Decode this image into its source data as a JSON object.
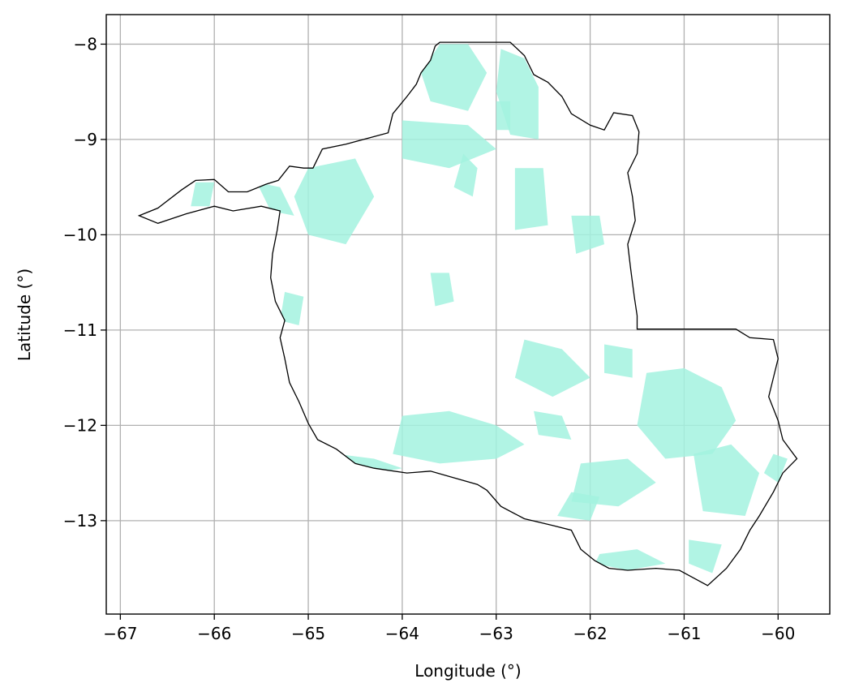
{
  "chart_data": {
    "type": "map",
    "title": "",
    "xlabel": "Longitude (°)",
    "ylabel": "Latitude (°)",
    "xlim": [
      -67.15,
      -59.45
    ],
    "ylim": [
      -13.98,
      -7.69
    ],
    "grid": true,
    "xticks": [
      -67,
      -66,
      -65,
      -64,
      -63,
      -62,
      -61,
      -60
    ],
    "yticks": [
      -8,
      -9,
      -10,
      -11,
      -12,
      -13
    ],
    "xtick_labels": [
      "−67",
      "−66",
      "−65",
      "−64",
      "−63",
      "−62",
      "−61",
      "−60"
    ],
    "ytick_labels": [
      "−8",
      "−9",
      "−10",
      "−11",
      "−12",
      "−13"
    ],
    "fill_color": "#a3f2df",
    "boundary_color": "#000000",
    "grid_color": "#b0b0b0",
    "boundary": [
      [
        -66.8,
        -9.8
      ],
      [
        -66.6,
        -9.72
      ],
      [
        -66.35,
        -9.53
      ],
      [
        -66.2,
        -9.43
      ],
      [
        -66.0,
        -9.42
      ],
      [
        -65.85,
        -9.55
      ],
      [
        -65.65,
        -9.55
      ],
      [
        -65.45,
        -9.47
      ],
      [
        -65.32,
        -9.43
      ],
      [
        -65.2,
        -9.28
      ],
      [
        -65.05,
        -9.3
      ],
      [
        -64.95,
        -9.3
      ],
      [
        -64.85,
        -9.1
      ],
      [
        -64.6,
        -9.05
      ],
      [
        -64.3,
        -8.97
      ],
      [
        -64.15,
        -8.93
      ],
      [
        -64.1,
        -8.73
      ],
      [
        -63.95,
        -8.55
      ],
      [
        -63.85,
        -8.42
      ],
      [
        -63.8,
        -8.3
      ],
      [
        -63.7,
        -8.17
      ],
      [
        -63.65,
        -8.02
      ],
      [
        -63.6,
        -7.98
      ],
      [
        -63.3,
        -7.98
      ],
      [
        -63.0,
        -7.98
      ],
      [
        -62.85,
        -7.98
      ],
      [
        -62.7,
        -8.12
      ],
      [
        -62.6,
        -8.32
      ],
      [
        -62.45,
        -8.4
      ],
      [
        -62.3,
        -8.55
      ],
      [
        -62.2,
        -8.73
      ],
      [
        -62.0,
        -8.85
      ],
      [
        -61.85,
        -8.9
      ],
      [
        -61.75,
        -8.72
      ],
      [
        -61.55,
        -8.75
      ],
      [
        -61.48,
        -8.92
      ],
      [
        -61.5,
        -9.15
      ],
      [
        -61.6,
        -9.35
      ],
      [
        -61.55,
        -9.6
      ],
      [
        -61.52,
        -9.85
      ],
      [
        -61.6,
        -10.1
      ],
      [
        -61.57,
        -10.35
      ],
      [
        -61.53,
        -10.65
      ],
      [
        -61.5,
        -10.85
      ],
      [
        -61.5,
        -10.99
      ],
      [
        -61.2,
        -10.99
      ],
      [
        -60.8,
        -10.99
      ],
      [
        -60.45,
        -10.99
      ],
      [
        -60.3,
        -11.08
      ],
      [
        -60.05,
        -11.1
      ],
      [
        -60.0,
        -11.3
      ],
      [
        -60.05,
        -11.5
      ],
      [
        -60.1,
        -11.7
      ],
      [
        -60.0,
        -11.95
      ],
      [
        -59.95,
        -12.15
      ],
      [
        -59.8,
        -12.35
      ],
      [
        -59.95,
        -12.5
      ],
      [
        -60.05,
        -12.7
      ],
      [
        -60.2,
        -12.95
      ],
      [
        -60.3,
        -13.1
      ],
      [
        -60.4,
        -13.3
      ],
      [
        -60.55,
        -13.5
      ],
      [
        -60.75,
        -13.68
      ],
      [
        -60.9,
        -13.6
      ],
      [
        -61.05,
        -13.52
      ],
      [
        -61.3,
        -13.5
      ],
      [
        -61.6,
        -13.52
      ],
      [
        -61.8,
        -13.5
      ],
      [
        -61.95,
        -13.42
      ],
      [
        -62.1,
        -13.3
      ],
      [
        -62.2,
        -13.1
      ],
      [
        -62.4,
        -13.05
      ],
      [
        -62.7,
        -12.98
      ],
      [
        -62.95,
        -12.85
      ],
      [
        -63.1,
        -12.68
      ],
      [
        -63.2,
        -12.62
      ],
      [
        -63.45,
        -12.55
      ],
      [
        -63.7,
        -12.48
      ],
      [
        -63.95,
        -12.5
      ],
      [
        -64.3,
        -12.45
      ],
      [
        -64.5,
        -12.4
      ],
      [
        -64.7,
        -12.25
      ],
      [
        -64.9,
        -12.15
      ],
      [
        -65.0,
        -11.98
      ],
      [
        -65.1,
        -11.75
      ],
      [
        -65.2,
        -11.55
      ],
      [
        -65.25,
        -11.3
      ],
      [
        -65.3,
        -11.08
      ],
      [
        -65.25,
        -10.9
      ],
      [
        -65.35,
        -10.7
      ],
      [
        -65.4,
        -10.45
      ],
      [
        -65.38,
        -10.2
      ],
      [
        -65.33,
        -9.95
      ],
      [
        -65.3,
        -9.75
      ],
      [
        -65.5,
        -9.7
      ],
      [
        -65.8,
        -9.75
      ],
      [
        -66.0,
        -9.7
      ],
      [
        -66.3,
        -9.78
      ],
      [
        -66.6,
        -9.88
      ],
      [
        -66.8,
        -9.8
      ]
    ],
    "cleared_areas": [
      [
        [
          -63.6,
          -8.0
        ],
        [
          -63.3,
          -8.0
        ],
        [
          -63.1,
          -8.3
        ],
        [
          -63.3,
          -8.7
        ],
        [
          -63.7,
          -8.6
        ],
        [
          -63.8,
          -8.3
        ]
      ],
      [
        [
          -62.95,
          -8.05
        ],
        [
          -62.7,
          -8.15
        ],
        [
          -62.55,
          -8.45
        ],
        [
          -62.55,
          -9.0
        ],
        [
          -62.85,
          -8.95
        ],
        [
          -63.0,
          -8.5
        ]
      ],
      [
        [
          -63.0,
          -8.6
        ],
        [
          -62.85,
          -8.6
        ],
        [
          -62.85,
          -8.9
        ],
        [
          -63.0,
          -8.9
        ]
      ],
      [
        [
          -64.0,
          -8.8
        ],
        [
          -63.3,
          -8.85
        ],
        [
          -63.0,
          -9.1
        ],
        [
          -63.5,
          -9.3
        ],
        [
          -64.0,
          -9.2
        ]
      ],
      [
        [
          -65.0,
          -9.3
        ],
        [
          -64.5,
          -9.2
        ],
        [
          -64.3,
          -9.6
        ],
        [
          -64.6,
          -10.1
        ],
        [
          -65.0,
          -10.0
        ],
        [
          -65.15,
          -9.6
        ]
      ],
      [
        [
          -65.55,
          -9.45
        ],
        [
          -65.3,
          -9.5
        ],
        [
          -65.15,
          -9.8
        ],
        [
          -65.4,
          -9.75
        ]
      ],
      [
        [
          -66.2,
          -9.45
        ],
        [
          -66.0,
          -9.45
        ],
        [
          -66.05,
          -9.7
        ],
        [
          -66.25,
          -9.7
        ]
      ],
      [
        [
          -63.35,
          -9.15
        ],
        [
          -63.2,
          -9.3
        ],
        [
          -63.25,
          -9.6
        ],
        [
          -63.45,
          -9.5
        ]
      ],
      [
        [
          -62.8,
          -9.3
        ],
        [
          -62.5,
          -9.3
        ],
        [
          -62.45,
          -9.9
        ],
        [
          -62.8,
          -9.95
        ]
      ],
      [
        [
          -63.7,
          -10.4
        ],
        [
          -63.5,
          -10.4
        ],
        [
          -63.45,
          -10.7
        ],
        [
          -63.65,
          -10.75
        ]
      ],
      [
        [
          -62.2,
          -9.8
        ],
        [
          -61.9,
          -9.8
        ],
        [
          -61.85,
          -10.1
        ],
        [
          -62.15,
          -10.2
        ]
      ],
      [
        [
          -65.25,
          -10.6
        ],
        [
          -65.05,
          -10.65
        ],
        [
          -65.1,
          -10.95
        ],
        [
          -65.3,
          -10.9
        ]
      ],
      [
        [
          -62.7,
          -11.1
        ],
        [
          -62.3,
          -11.2
        ],
        [
          -62.0,
          -11.5
        ],
        [
          -62.4,
          -11.7
        ],
        [
          -62.8,
          -11.5
        ]
      ],
      [
        [
          -64.0,
          -11.9
        ],
        [
          -63.5,
          -11.85
        ],
        [
          -63.0,
          -12.0
        ],
        [
          -62.7,
          -12.2
        ],
        [
          -63.0,
          -12.35
        ],
        [
          -63.6,
          -12.4
        ],
        [
          -64.1,
          -12.3
        ]
      ],
      [
        [
          -64.7,
          -12.3
        ],
        [
          -64.3,
          -12.35
        ],
        [
          -64.0,
          -12.45
        ],
        [
          -64.4,
          -12.52
        ],
        [
          -64.75,
          -12.42
        ]
      ],
      [
        [
          -61.4,
          -11.45
        ],
        [
          -61.0,
          -11.4
        ],
        [
          -60.6,
          -11.6
        ],
        [
          -60.45,
          -11.95
        ],
        [
          -60.7,
          -12.3
        ],
        [
          -61.2,
          -12.35
        ],
        [
          -61.5,
          -12.0
        ]
      ],
      [
        [
          -60.9,
          -12.3
        ],
        [
          -60.5,
          -12.2
        ],
        [
          -60.2,
          -12.5
        ],
        [
          -60.35,
          -12.95
        ],
        [
          -60.8,
          -12.9
        ]
      ],
      [
        [
          -62.1,
          -12.4
        ],
        [
          -61.6,
          -12.35
        ],
        [
          -61.3,
          -12.6
        ],
        [
          -61.7,
          -12.85
        ],
        [
          -62.2,
          -12.8
        ]
      ],
      [
        [
          -62.2,
          -12.7
        ],
        [
          -61.9,
          -12.75
        ],
        [
          -62.0,
          -13.0
        ],
        [
          -62.35,
          -12.95
        ]
      ],
      [
        [
          -61.9,
          -13.35
        ],
        [
          -61.5,
          -13.3
        ],
        [
          -61.2,
          -13.45
        ],
        [
          -61.6,
          -13.52
        ],
        [
          -61.95,
          -13.45
        ]
      ],
      [
        [
          -60.95,
          -13.2
        ],
        [
          -60.6,
          -13.25
        ],
        [
          -60.7,
          -13.55
        ],
        [
          -60.95,
          -13.45
        ]
      ],
      [
        [
          -60.05,
          -12.3
        ],
        [
          -59.9,
          -12.35
        ],
        [
          -60.0,
          -12.6
        ],
        [
          -60.15,
          -12.5
        ]
      ],
      [
        [
          -62.6,
          -11.85
        ],
        [
          -62.3,
          -11.9
        ],
        [
          -62.2,
          -12.15
        ],
        [
          -62.55,
          -12.1
        ]
      ],
      [
        [
          -61.85,
          -11.15
        ],
        [
          -61.55,
          -11.2
        ],
        [
          -61.55,
          -11.5
        ],
        [
          -61.85,
          -11.45
        ]
      ]
    ]
  }
}
